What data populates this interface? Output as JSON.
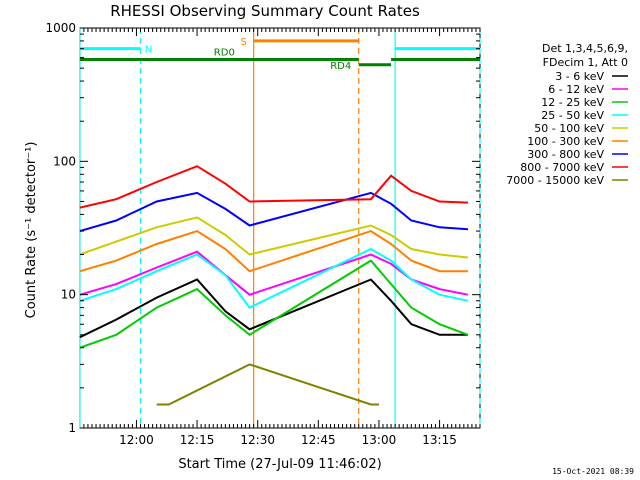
{
  "chart_data": {
    "type": "line",
    "title": "RHESSI Observing Summary Count Rates",
    "xlabel": "Start Time (27-Jul-09 11:46:02)",
    "ylabel": "Count Rate (s⁻¹ detector⁻¹)",
    "yscale": "log",
    "ylim": [
      1,
      1000
    ],
    "y_ticks": [
      "1",
      "10",
      "100",
      "1000"
    ],
    "x_range_minutes": [
      "11:46:02",
      "13:25:00"
    ],
    "x_ticks": [
      "12:00",
      "12:15",
      "12:30",
      "12:45",
      "13:00",
      "13:15"
    ],
    "legend_header": [
      "Det 1,3,4,5,6,9,",
      "FDecim 1, Att 0"
    ],
    "legend_position": "right",
    "grid": false,
    "series": [
      {
        "name": "3 - 6 keV",
        "color": "#000000",
        "x": [
          "11:46",
          "11:55",
          "12:05",
          "12:15",
          "12:22",
          "12:28",
          "12:58",
          "13:03",
          "13:08",
          "13:15",
          "13:22"
        ],
        "values": [
          4.8,
          6.5,
          9.5,
          13,
          7.5,
          5.5,
          13,
          9,
          6,
          5,
          5
        ]
      },
      {
        "name": "6 - 12 keV",
        "color": "#ff00ff",
        "x": [
          "11:46",
          "11:55",
          "12:05",
          "12:15",
          "12:22",
          "12:28",
          "12:58",
          "13:03",
          "13:08",
          "13:15",
          "13:22"
        ],
        "values": [
          10,
          12,
          16,
          21,
          14,
          10,
          20,
          17,
          13,
          11,
          10
        ]
      },
      {
        "name": "12 - 25 keV",
        "color": "#00cc00",
        "x": [
          "11:46",
          "11:55",
          "12:05",
          "12:15",
          "12:22",
          "12:28",
          "12:58",
          "13:03",
          "13:08",
          "13:15",
          "13:22"
        ],
        "values": [
          4,
          5,
          8,
          11,
          7,
          5,
          18,
          12,
          8,
          6,
          5
        ]
      },
      {
        "name": "25 - 50 keV",
        "color": "#00ffff",
        "x": [
          "11:46",
          "11:55",
          "12:05",
          "12:15",
          "12:22",
          "12:28",
          "12:58",
          "13:03",
          "13:08",
          "13:15",
          "13:22"
        ],
        "values": [
          9,
          11,
          15,
          20,
          14,
          8,
          22,
          18,
          13,
          10,
          9
        ]
      },
      {
        "name": "50 - 100 keV",
        "color": "#cccc00",
        "x": [
          "11:46",
          "11:55",
          "12:05",
          "12:15",
          "12:22",
          "12:28",
          "12:58",
          "13:03",
          "13:08",
          "13:15",
          "13:22"
        ],
        "values": [
          20,
          25,
          32,
          38,
          28,
          20,
          33,
          28,
          22,
          20,
          19
        ]
      },
      {
        "name": "100 - 300 keV",
        "color": "#ff8000",
        "x": [
          "11:46",
          "11:55",
          "12:05",
          "12:15",
          "12:22",
          "12:28",
          "12:58",
          "13:03",
          "13:08",
          "13:15",
          "13:22"
        ],
        "values": [
          15,
          18,
          24,
          30,
          22,
          15,
          30,
          24,
          18,
          15,
          15
        ]
      },
      {
        "name": "300 - 800 keV",
        "color": "#0000ff",
        "x": [
          "11:46",
          "11:55",
          "12:05",
          "12:15",
          "12:22",
          "12:28",
          "12:58",
          "13:03",
          "13:08",
          "13:15",
          "13:22"
        ],
        "values": [
          30,
          36,
          50,
          58,
          44,
          33,
          58,
          48,
          36,
          32,
          31
        ]
      },
      {
        "name": "800 - 7000 keV",
        "color": "#ff0000",
        "x": [
          "11:46",
          "11:55",
          "12:05",
          "12:15",
          "12:22",
          "12:28",
          "12:58",
          "13:03",
          "13:08",
          "13:15",
          "13:22"
        ],
        "values": [
          45,
          52,
          70,
          92,
          68,
          50,
          52,
          78,
          60,
          50,
          49
        ]
      },
      {
        "name": "7000 - 15000 keV",
        "color": "#808000",
        "x": [
          "12:05",
          "12:08",
          "12:28",
          "12:58",
          "13:00"
        ],
        "values": [
          1.5,
          1.5,
          3,
          1.5,
          1.5
        ]
      }
    ],
    "annotations": {
      "night_lines_color": "#00ffff",
      "saa_color": "#ff8000",
      "decim_color": "#008000",
      "segments": [
        {
          "label": "N",
          "color": "#00ffff",
          "from": "11:46",
          "to": "12:01",
          "level": 700
        },
        {
          "label": "N",
          "color": "#00ffff",
          "from": "13:04",
          "to": "13:25",
          "level": 700
        },
        {
          "label": "S",
          "color": "#ff8000",
          "from": "12:29",
          "to": "12:55",
          "level": 800
        },
        {
          "label": "RD0",
          "color": "#008000",
          "from": "11:46",
          "to": "12:55",
          "level": 580
        },
        {
          "label": "RD0",
          "color": "#008000",
          "from": "13:03",
          "to": "13:25",
          "level": 580
        },
        {
          "label": "RD4",
          "color": "#008000",
          "from": "12:55",
          "to": "13:03",
          "level": 530
        }
      ],
      "vertical_lines": [
        {
          "time": "11:46",
          "color": "#00ffff",
          "dashed": false
        },
        {
          "time": "12:01",
          "color": "#00ffff",
          "dashed": true
        },
        {
          "time": "12:29",
          "color": "#ff8000",
          "dashed": false
        },
        {
          "time": "12:55",
          "color": "#ff8000",
          "dashed": true
        },
        {
          "time": "13:04",
          "color": "#00ffff",
          "dashed": false
        },
        {
          "time": "13:25",
          "color": "#00ffff",
          "dashed": true
        }
      ]
    }
  },
  "footer_timestamp": "15-Oct-2021 08:39"
}
